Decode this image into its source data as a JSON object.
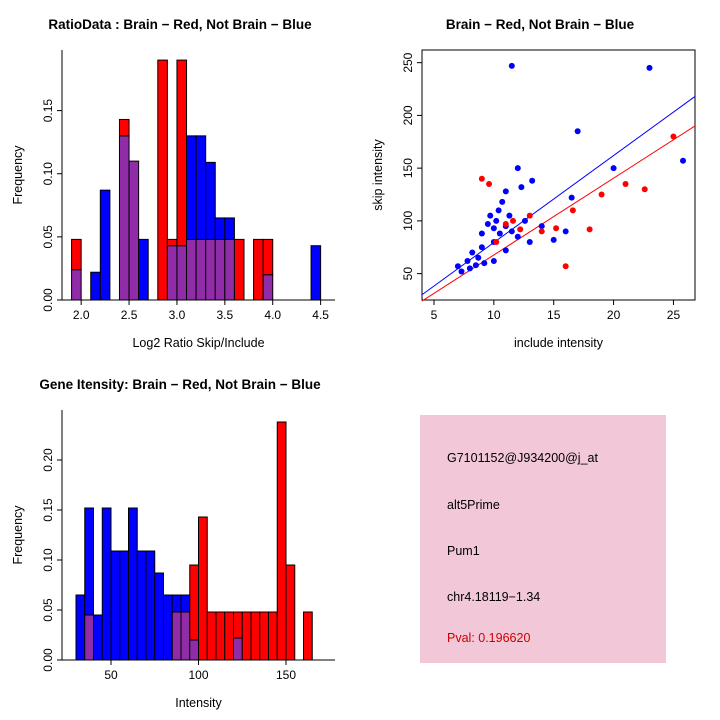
{
  "colors": {
    "red": "#FF0000",
    "blue": "#0000FF",
    "purple": "#912CA8",
    "axis": "#000000",
    "background": "#FFFFFF"
  },
  "chart_data": [
    {
      "type": "histogram-overlay",
      "title": "RatioData : Brain − Red, Not Brain − Blue",
      "xlabel": "Log2 Ratio Skip/Include",
      "ylabel": "Frequency",
      "xlim": [
        1.8,
        4.65
      ],
      "ylim": [
        0,
        0.198
      ],
      "xticks": [
        2.0,
        2.5,
        3.0,
        3.5,
        4.0,
        4.5
      ],
      "xtick_labels": [
        "2.0",
        "2.5",
        "3.0",
        "3.5",
        "4.0",
        "4.5"
      ],
      "yticks": [
        0,
        0.05,
        0.1,
        0.15
      ],
      "ytick_labels": [
        "0.00",
        "0.05",
        "0.10",
        "0.15"
      ],
      "bin_width": 0.1,
      "series_legend": {
        "red": "Brain",
        "blue": "Not Brain"
      },
      "bins": [
        {
          "x": 1.9,
          "red": 0.048,
          "blue": 0.024
        },
        {
          "x": 2.1,
          "red": 0,
          "blue": 0.022
        },
        {
          "x": 2.2,
          "red": 0,
          "blue": 0.087
        },
        {
          "x": 2.4,
          "red": 0.143,
          "blue": 0.13
        },
        {
          "x": 2.5,
          "red": 0.11,
          "blue": 0.11
        },
        {
          "x": 2.6,
          "red": 0,
          "blue": 0.048
        },
        {
          "x": 2.8,
          "red": 0.19,
          "blue": 0
        },
        {
          "x": 2.9,
          "red": 0.048,
          "blue": 0.043
        },
        {
          "x": 3.0,
          "red": 0.19,
          "blue": 0.043
        },
        {
          "x": 3.1,
          "red": 0.048,
          "blue": 0.13
        },
        {
          "x": 3.2,
          "red": 0.048,
          "blue": 0.13
        },
        {
          "x": 3.3,
          "red": 0.048,
          "blue": 0.109
        },
        {
          "x": 3.4,
          "red": 0.048,
          "blue": 0.065
        },
        {
          "x": 3.5,
          "red": 0.048,
          "blue": 0.065
        },
        {
          "x": 3.6,
          "red": 0.048,
          "blue": 0
        },
        {
          "x": 3.8,
          "red": 0.048,
          "blue": 0
        },
        {
          "x": 3.9,
          "red": 0.048,
          "blue": 0.02
        },
        {
          "x": 4.4,
          "red": 0,
          "blue": 0.043
        }
      ]
    },
    {
      "type": "scatter",
      "title": "Brain − Red, Not Brain − Blue",
      "xlabel": "include intensity",
      "ylabel": "skip intensity",
      "xlim": [
        4,
        26.8
      ],
      "ylim": [
        25,
        262
      ],
      "xticks": [
        5,
        10,
        15,
        20,
        25
      ],
      "xtick_labels": [
        "5",
        "10",
        "15",
        "20",
        "25"
      ],
      "yticks": [
        50,
        100,
        150,
        200,
        250
      ],
      "ytick_labels": [
        "50",
        "100",
        "150",
        "200",
        "250"
      ],
      "series_legend": {
        "red": "Brain",
        "blue": "Not Brain"
      },
      "line_blue": [
        4,
        30,
        26.8,
        218
      ],
      "line_red": [
        4,
        24,
        26.8,
        190
      ],
      "blue_points": [
        [
          7,
          57
        ],
        [
          7.3,
          52
        ],
        [
          7.8,
          62
        ],
        [
          8,
          55
        ],
        [
          8.2,
          70
        ],
        [
          8.5,
          58
        ],
        [
          8.7,
          65
        ],
        [
          9,
          75
        ],
        [
          9,
          88
        ],
        [
          9.2,
          60
        ],
        [
          9.5,
          97
        ],
        [
          9.7,
          105
        ],
        [
          10,
          62
        ],
        [
          10,
          80
        ],
        [
          10,
          93
        ],
        [
          10.2,
          100
        ],
        [
          10.4,
          110
        ],
        [
          10.5,
          88
        ],
        [
          10.7,
          118
        ],
        [
          11,
          72
        ],
        [
          11,
          95
        ],
        [
          11,
          128
        ],
        [
          11.3,
          105
        ],
        [
          11.5,
          90
        ],
        [
          11.5,
          247
        ],
        [
          12,
          85
        ],
        [
          12,
          150
        ],
        [
          12.3,
          132
        ],
        [
          12.6,
          100
        ],
        [
          13,
          80
        ],
        [
          13.2,
          138
        ],
        [
          14,
          95
        ],
        [
          15,
          82
        ],
        [
          16,
          90
        ],
        [
          16.5,
          122
        ],
        [
          17,
          185
        ],
        [
          20,
          150
        ],
        [
          23,
          245
        ],
        [
          25.8,
          157
        ]
      ],
      "red_points": [
        [
          9,
          140
        ],
        [
          9.6,
          135
        ],
        [
          10.2,
          80
        ],
        [
          11,
          97
        ],
        [
          11.6,
          100
        ],
        [
          12.2,
          92
        ],
        [
          13,
          105
        ],
        [
          14,
          90
        ],
        [
          15.2,
          93
        ],
        [
          16,
          57
        ],
        [
          16.6,
          110
        ],
        [
          18,
          92
        ],
        [
          19,
          125
        ],
        [
          21,
          135
        ],
        [
          22.6,
          130
        ],
        [
          25,
          180
        ]
      ]
    },
    {
      "type": "histogram-overlay",
      "title": "Gene Itensity: Brain − Red, Not Brain − Blue",
      "xlabel": "Intensity",
      "ylabel": "Frequency",
      "xlim": [
        22,
        178
      ],
      "ylim": [
        0,
        0.25
      ],
      "xticks": [
        50,
        100,
        150
      ],
      "xtick_labels": [
        "50",
        "100",
        "150"
      ],
      "yticks": [
        0,
        0.05,
        0.1,
        0.15,
        0.2
      ],
      "ytick_labels": [
        "0.00",
        "0.05",
        "0.10",
        "0.15",
        "0.20"
      ],
      "bin_width": 5,
      "series_legend": {
        "red": "Brain",
        "blue": "Not Brain"
      },
      "bins": [
        {
          "x": 30,
          "red": 0,
          "blue": 0.065
        },
        {
          "x": 35,
          "red": 0.045,
          "blue": 0.152
        },
        {
          "x": 40,
          "red": 0,
          "blue": 0.045
        },
        {
          "x": 45,
          "red": 0,
          "blue": 0.152
        },
        {
          "x": 50,
          "red": 0,
          "blue": 0.109
        },
        {
          "x": 55,
          "red": 0,
          "blue": 0.109
        },
        {
          "x": 60,
          "red": 0,
          "blue": 0.152
        },
        {
          "x": 65,
          "red": 0,
          "blue": 0.109
        },
        {
          "x": 70,
          "red": 0,
          "blue": 0.109
        },
        {
          "x": 75,
          "red": 0,
          "blue": 0.087
        },
        {
          "x": 80,
          "red": 0,
          "blue": 0.065
        },
        {
          "x": 85,
          "red": 0.048,
          "blue": 0.065
        },
        {
          "x": 90,
          "red": 0.048,
          "blue": 0.065
        },
        {
          "x": 95,
          "red": 0.095,
          "blue": 0.02
        },
        {
          "x": 100,
          "red": 0.143,
          "blue": 0
        },
        {
          "x": 105,
          "red": 0.048,
          "blue": 0
        },
        {
          "x": 110,
          "red": 0.048,
          "blue": 0
        },
        {
          "x": 115,
          "red": 0.048,
          "blue": 0
        },
        {
          "x": 120,
          "red": 0.048,
          "blue": 0.022
        },
        {
          "x": 125,
          "red": 0.048,
          "blue": 0
        },
        {
          "x": 130,
          "red": 0.048,
          "blue": 0
        },
        {
          "x": 135,
          "red": 0.048,
          "blue": 0
        },
        {
          "x": 140,
          "red": 0.048,
          "blue": 0
        },
        {
          "x": 145,
          "red": 0.238,
          "blue": 0
        },
        {
          "x": 150,
          "red": 0.095,
          "blue": 0
        },
        {
          "x": 160,
          "red": 0.048,
          "blue": 0
        }
      ]
    }
  ],
  "info_panel": {
    "bg": "#F2C8D8",
    "lines": [
      {
        "text": "G7101152@J934200@j_at",
        "color": "#000000"
      },
      {
        "text": "alt5Prime",
        "color": "#000000"
      },
      {
        "text": "Pum1",
        "color": "#000000"
      },
      {
        "text": "chr4.18119−1.34",
        "color": "#000000"
      },
      {
        "text": "Pval: 0.196620",
        "color": "#CC0000"
      }
    ]
  }
}
